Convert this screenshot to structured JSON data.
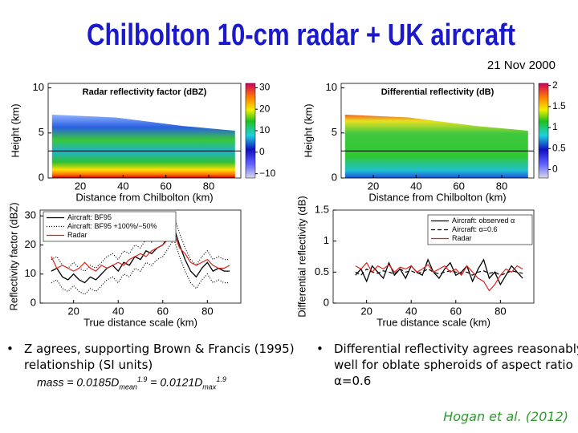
{
  "title": "Chilbolton 10-cm radar + UK aircraft",
  "date": "21 Nov 2000",
  "chart_data": [
    {
      "type": "heatmap",
      "title": "Radar reflectivity factor (dBZ)",
      "x_label": "Distance from Chilbolton (km)",
      "y_label": "Height (km)",
      "xlim": [
        5,
        95
      ],
      "xticks": [
        20,
        40,
        60,
        80
      ],
      "ylim": [
        0,
        10.5
      ],
      "yticks": [
        0,
        5,
        10
      ],
      "hline": 3,
      "colorbar": {
        "lim": [
          -12,
          32
        ],
        "ticks": [
          {
            "value": -10,
            "label": "−10"
          },
          0,
          10,
          20,
          30
        ]
      }
    },
    {
      "type": "heatmap",
      "title": "Differential reflectivity (dB)",
      "x_label": "Distance from Chilbolton (km)",
      "y_label": "Height (km)",
      "xlim": [
        5,
        95
      ],
      "xticks": [
        20,
        40,
        60,
        80
      ],
      "ylim": [
        0,
        10.5
      ],
      "yticks": [
        0,
        5,
        10
      ],
      "hline": 3,
      "colorbar": {
        "lim": [
          -0.2,
          2.05
        ],
        "ticks": [
          0,
          0.5,
          1,
          1.5,
          2
        ]
      }
    },
    {
      "type": "line",
      "x_label": "True distance scale (km)",
      "y_label": "Reflectivity factor (dBZ)",
      "xlim": [
        5,
        95
      ],
      "xticks": [
        20,
        40,
        60,
        80
      ],
      "ylim": [
        0,
        32
      ],
      "yticks": [
        0,
        10,
        20,
        30
      ],
      "x": [
        10,
        12.5,
        15,
        17.5,
        20,
        22.5,
        25,
        27.5,
        30,
        32.5,
        35,
        37.5,
        40,
        42.5,
        45,
        47.5,
        50,
        52.5,
        55,
        57.5,
        60,
        62.5,
        65,
        67.5,
        70,
        72.5,
        75,
        77.5,
        80,
        82.5,
        85,
        87.5,
        90
      ],
      "series": [
        {
          "name": "Aircraft: BF95",
          "color": "#000000",
          "values": [
            11,
            12,
            9,
            8,
            10,
            8,
            7,
            9,
            8,
            10,
            12,
            13,
            11,
            14,
            13,
            16,
            15,
            18,
            17,
            19,
            20,
            23,
            26,
            20,
            15,
            11,
            9,
            12,
            14,
            11,
            12,
            11,
            11
          ]
        },
        {
          "name": "Aircraft: BF95 +100%/−50%",
          "color": "#000000",
          "dash": "dotted",
          "upper": [
            15,
            16,
            13,
            12,
            14,
            12,
            11,
            13,
            12,
            14,
            16,
            17,
            15,
            18,
            17,
            20,
            19,
            22,
            21,
            23,
            24,
            27,
            30,
            24,
            19,
            15,
            13,
            16,
            18,
            15,
            16,
            15,
            15
          ],
          "lower": [
            7,
            8,
            5,
            4,
            6,
            4,
            3,
            5,
            4,
            6,
            8,
            9,
            7,
            10,
            9,
            12,
            11,
            14,
            13,
            15,
            16,
            19,
            22,
            16,
            11,
            7,
            5,
            8,
            10,
            7,
            8,
            7,
            7
          ]
        },
        {
          "name": "Radar",
          "color": "#e0201b",
          "values": [
            16,
            12,
            13,
            12,
            11,
            12,
            14,
            12,
            11,
            13,
            12,
            13,
            14,
            13,
            15,
            16,
            17,
            16,
            18,
            19,
            20,
            22,
            24,
            19,
            17,
            14,
            13,
            14,
            15,
            13,
            12,
            12,
            13
          ]
        }
      ]
    },
    {
      "type": "line",
      "x_label": "True distance scale (km)",
      "y_label": "Differential reflectivity (dB)",
      "xlim": [
        5,
        95
      ],
      "xticks": [
        20,
        40,
        60,
        80
      ],
      "ylim": [
        0,
        1.5
      ],
      "yticks": [
        0,
        0.5,
        1,
        1.5
      ],
      "x": [
        15,
        17.5,
        20,
        22.5,
        25,
        27.5,
        30,
        32.5,
        35,
        37.5,
        40,
        42.5,
        45,
        47.5,
        50,
        52.5,
        55,
        57.5,
        60,
        62.5,
        65,
        67.5,
        70,
        72.5,
        75,
        77.5,
        80,
        82.5,
        85,
        87.5,
        90
      ],
      "series": [
        {
          "name": "Aircraft: observed α",
          "color": "#000000",
          "values": [
            0.45,
            0.55,
            0.35,
            0.6,
            0.5,
            0.4,
            0.65,
            0.45,
            0.55,
            0.4,
            0.6,
            0.5,
            0.45,
            0.7,
            0.5,
            0.4,
            0.55,
            0.65,
            0.45,
            0.5,
            0.6,
            0.35,
            0.55,
            0.7,
            0.4,
            0.5,
            0.3,
            0.45,
            0.6,
            0.5,
            0.4
          ]
        },
        {
          "name": "Aircraft: α=0.6",
          "color": "#000000",
          "dash": "dashed",
          "values": [
            0.5,
            0.45,
            0.55,
            0.5,
            0.48,
            0.52,
            0.5,
            0.47,
            0.55,
            0.5,
            0.52,
            0.48,
            0.5,
            0.55,
            0.5,
            0.47,
            0.5,
            0.52,
            0.5,
            0.48,
            0.5,
            0.45,
            0.5,
            0.52,
            0.48,
            0.5,
            0.45,
            0.48,
            0.52,
            0.5,
            0.48
          ]
        },
        {
          "name": "Radar",
          "color": "#e0201b",
          "values": [
            0.6,
            0.55,
            0.65,
            0.5,
            0.6,
            0.55,
            0.62,
            0.5,
            0.58,
            0.55,
            0.6,
            0.5,
            0.55,
            0.62,
            0.5,
            0.55,
            0.6,
            0.5,
            0.55,
            0.45,
            0.6,
            0.5,
            0.4,
            0.35,
            0.2,
            0.3,
            0.45,
            0.55,
            0.5,
            0.6,
            0.55
          ]
        }
      ]
    }
  ],
  "bullets": [
    "Z agrees, supporting Brown & Francis (1995) relationship (SI units)",
    "Differential reflectivity agrees reasonably well for oblate spheroids of aspect ratio α=0.6"
  ],
  "formula": {
    "lhs": "mass = 0.0185",
    "var1": "D",
    "sub1": "mean",
    "sup1": "1.9",
    "mid": " = 0.0121",
    "var2": "D",
    "sub2": "max",
    "sup2": "1.9"
  },
  "citation": "Hogan et al. (2012)"
}
